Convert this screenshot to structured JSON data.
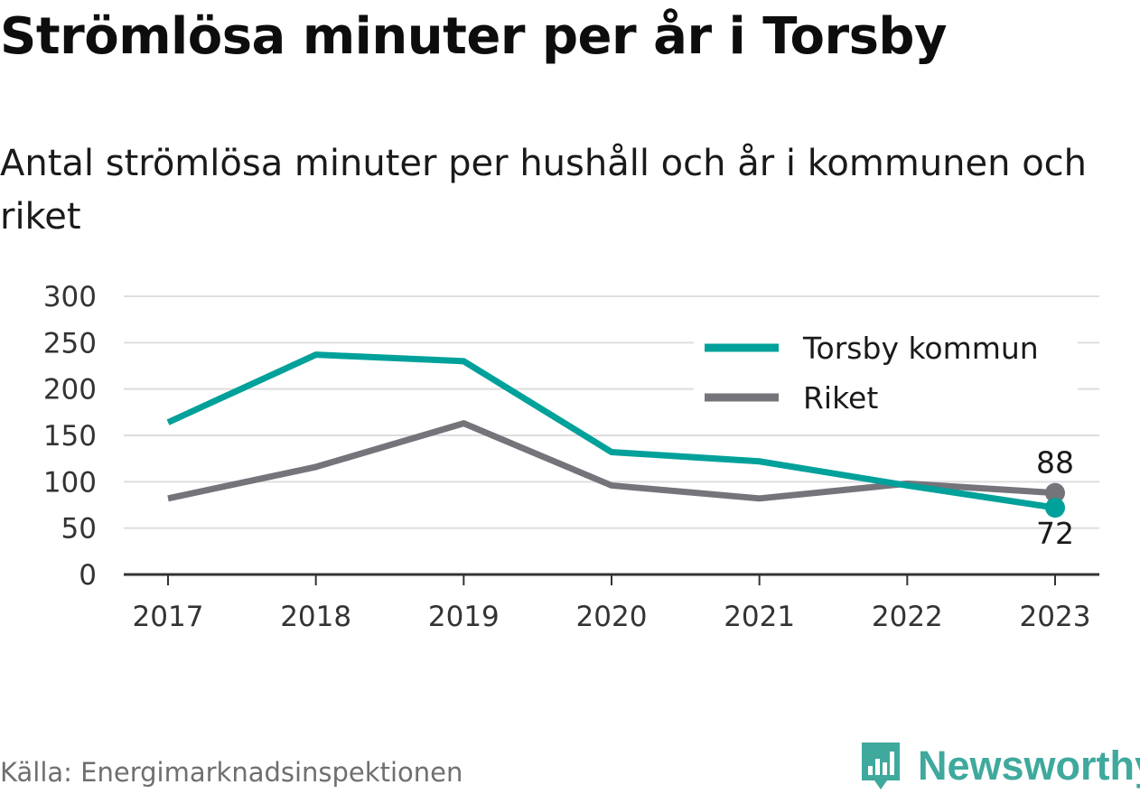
{
  "title": "Strömlösa minuter per år i Torsby",
  "subtitle": "Antal strömlösa minuter per hushåll och år i kommunen och riket",
  "source": "Källa: Energimarknadsinspektionen",
  "brand": {
    "name": "Newsworthy",
    "icon": "bar-chart-bubble-icon",
    "color": "#3fa99d"
  },
  "chart_data": {
    "type": "line",
    "title": "Strömlösa minuter per år i Torsby",
    "xlabel": "",
    "ylabel": "",
    "x": [
      "2017",
      "2018",
      "2019",
      "2020",
      "2021",
      "2022",
      "2023"
    ],
    "ylim": [
      0,
      300
    ],
    "yticks": [
      0,
      50,
      100,
      150,
      200,
      250,
      300
    ],
    "grid": true,
    "legend_position": "top-right",
    "series": [
      {
        "name": "Torsby kommun",
        "color": "#00a19a",
        "values": [
          164,
          237,
          230,
          132,
          122,
          96,
          72
        ],
        "end_label": "72"
      },
      {
        "name": "Riket",
        "color": "#75747a",
        "values": [
          82,
          116,
          163,
          96,
          82,
          98,
          88
        ],
        "end_label": "88"
      }
    ]
  }
}
